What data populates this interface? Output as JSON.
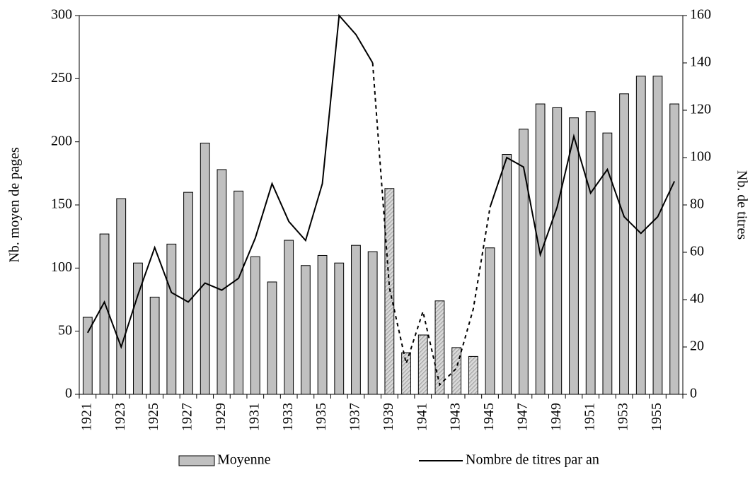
{
  "chart_data": {
    "type": "bar",
    "categories": [
      "1921",
      null,
      "1923",
      null,
      "1925",
      null,
      "1927",
      null,
      "1929",
      null,
      "1931",
      null,
      "1933",
      null,
      "1935",
      null,
      "1937",
      null,
      "1939",
      null,
      "1941",
      null,
      "1943",
      null,
      "1945",
      null,
      "1947",
      null,
      "1949",
      null,
      "1951",
      null,
      "1953",
      null,
      "1955",
      null
    ],
    "series": [
      {
        "name": "Moyenne",
        "type": "bar",
        "color": "#c0c0c0",
        "hatched_range": [
          18,
          23
        ],
        "values": [
          61,
          127,
          155,
          104,
          77,
          119,
          160,
          199,
          178,
          161,
          109,
          89,
          122,
          102,
          110,
          104,
          118,
          113,
          163,
          33,
          47,
          74,
          37,
          30,
          116,
          190,
          210,
          230,
          227,
          219,
          224,
          207,
          238,
          252,
          252,
          230
        ]
      },
      {
        "name": "Nombre de titres par an",
        "type": "line",
        "axis": "y2",
        "color": "#000000",
        "dashed_range": [
          17,
          24
        ],
        "values": [
          26,
          39,
          20,
          42,
          62,
          43,
          39,
          47,
          44,
          49,
          66,
          89,
          73,
          65,
          89,
          160,
          152,
          140,
          45,
          13,
          35,
          4,
          11,
          36,
          79,
          100,
          96,
          59,
          79,
          109,
          85,
          95,
          75,
          68,
          75,
          90
        ]
      }
    ],
    "y_label": "Nb. moyen de pages",
    "y2_label": "Nb. de titres",
    "ylim": [
      0,
      300
    ],
    "yticks": [
      0,
      50,
      100,
      150,
      200,
      250,
      300
    ],
    "y2lim": [
      0,
      160
    ],
    "y2ticks": [
      0,
      20,
      40,
      60,
      80,
      100,
      120,
      140,
      160
    ],
    "grid": false,
    "legend": "bottom"
  }
}
